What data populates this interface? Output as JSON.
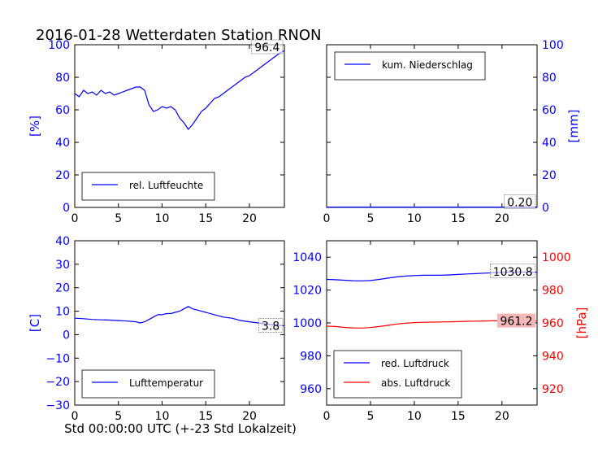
{
  "figure_title": "2016-01-28 Wetterdaten Station RNON",
  "bottom_xlabel": "Std 00:00:00 UTC (+-23 Std Lokalzeit)",
  "colors": {
    "blue": "#0000ff",
    "red": "#ff0000",
    "black": "#000000",
    "red_box": "#f4b8b8"
  },
  "chart_data": [
    {
      "type": "line",
      "panel": "top-left",
      "ylabel": "[%]",
      "xlim": [
        0,
        24
      ],
      "ylim": [
        0,
        100
      ],
      "xticks": [
        0,
        5,
        10,
        15,
        20
      ],
      "yticks": [
        0,
        20,
        40,
        60,
        80,
        100
      ],
      "legend": "bottom-left",
      "series": [
        {
          "name": "rel. Luftfeuchte",
          "color": "#0000ff",
          "x": [
            0,
            0.5,
            1,
            1.5,
            2,
            2.5,
            3,
            3.5,
            4,
            4.5,
            5,
            5.5,
            6,
            6.5,
            7,
            7.5,
            8,
            8.5,
            9,
            9.5,
            10,
            10.5,
            11,
            11.5,
            12,
            12.5,
            13,
            13.5,
            14,
            14.5,
            15,
            15.5,
            16,
            16.5,
            17,
            17.5,
            18,
            18.5,
            19,
            19.5,
            20,
            20.5,
            21,
            21.5,
            22,
            22.5,
            23,
            23.5,
            24
          ],
          "y": [
            70,
            68,
            72,
            70,
            71,
            69,
            72,
            70,
            71,
            69,
            70,
            71,
            72,
            73,
            74,
            74,
            72,
            63,
            59,
            60,
            62,
            61,
            62,
            60,
            55,
            52,
            48,
            51,
            55,
            59,
            61,
            64,
            67,
            68,
            70,
            72,
            74,
            76,
            78,
            80,
            81,
            83,
            85,
            87,
            89,
            91,
            93,
            95,
            96.4
          ]
        }
      ],
      "last_value_label": "96.4"
    },
    {
      "type": "line",
      "panel": "top-right",
      "ylabel": "[mm]",
      "xlim": [
        0,
        24
      ],
      "ylim": [
        0,
        100
      ],
      "xticks": [
        0,
        5,
        10,
        15,
        20
      ],
      "yticks": [
        0,
        20,
        40,
        60,
        80,
        100
      ],
      "legend": "top-left",
      "series": [
        {
          "name": "kum. Niederschlag",
          "color": "#0000ff",
          "x": [
            0,
            24
          ],
          "y": [
            0.2,
            0.2
          ]
        }
      ],
      "last_value_label": "0.20"
    },
    {
      "type": "line",
      "panel": "bottom-left",
      "ylabel": "[C]",
      "xlim": [
        0,
        24
      ],
      "ylim": [
        -30,
        40
      ],
      "xticks": [
        0,
        5,
        10,
        15,
        20
      ],
      "yticks": [
        -30,
        -20,
        -10,
        0,
        10,
        20,
        30,
        40
      ],
      "legend": "bottom-left",
      "series": [
        {
          "name": "Lufttemperatur",
          "color": "#0000ff",
          "x": [
            0,
            1,
            2,
            3,
            4,
            5,
            6,
            7,
            7.5,
            8,
            8.5,
            9,
            9.5,
            10,
            10.5,
            11,
            11.5,
            12,
            12.5,
            13,
            13.5,
            14,
            15,
            16,
            17,
            18,
            19,
            20,
            21,
            22,
            23,
            24
          ],
          "y": [
            7,
            6.8,
            6.5,
            6.3,
            6.2,
            6,
            5.8,
            5.5,
            5,
            5.5,
            6.5,
            7.5,
            8.5,
            8.5,
            9,
            9,
            9.5,
            10,
            11,
            12,
            11,
            10.5,
            9.5,
            8.5,
            7.5,
            7,
            6,
            5.5,
            5,
            4.5,
            4,
            3.8
          ]
        }
      ],
      "last_value_label": "3.8"
    },
    {
      "type": "line",
      "panel": "bottom-right",
      "xlim": [
        0,
        24
      ],
      "ylim_left": [
        950,
        1050
      ],
      "yticks_left": [
        960,
        980,
        1000,
        1020,
        1040
      ],
      "ylabel_right": "[hPa]",
      "ylim_right": [
        910,
        1010
      ],
      "yticks_right": [
        920,
        940,
        960,
        980,
        1000
      ],
      "xticks": [
        0,
        5,
        10,
        15,
        20
      ],
      "legend": "bottom-left",
      "series": [
        {
          "name": "red. Luftdruck",
          "color": "#0000ff",
          "axis": "left",
          "x": [
            0,
            1,
            2,
            3,
            4,
            5,
            6,
            7,
            8,
            9,
            10,
            11,
            12,
            13,
            14,
            15,
            16,
            17,
            18,
            19,
            20,
            21,
            22,
            23,
            24
          ],
          "y": [
            1026.5,
            1026.3,
            1026,
            1025.7,
            1025.6,
            1025.8,
            1026.5,
            1027.3,
            1028,
            1028.5,
            1028.8,
            1029,
            1029,
            1029,
            1029.2,
            1029.5,
            1029.8,
            1030,
            1030.3,
            1030.5,
            1030.8,
            1031,
            1031,
            1030.9,
            1030.8
          ]
        },
        {
          "name": "abs. Luftdruck",
          "color": "#ff0000",
          "axis": "right",
          "x": [
            0,
            1,
            2,
            3,
            4,
            5,
            6,
            7,
            8,
            9,
            10,
            11,
            12,
            13,
            14,
            15,
            16,
            17,
            18,
            19,
            20,
            21,
            22,
            23,
            24
          ],
          "y": [
            958,
            957.8,
            957.3,
            957,
            956.9,
            957.2,
            957.8,
            958.5,
            959.3,
            959.8,
            960.2,
            960.4,
            960.5,
            960.6,
            960.7,
            960.8,
            961,
            961.1,
            961.2,
            961.3,
            961.4,
            961.4,
            961.3,
            961.2,
            961.2
          ]
        }
      ],
      "last_value_labels": [
        "1030.8",
        "961.2"
      ]
    }
  ]
}
